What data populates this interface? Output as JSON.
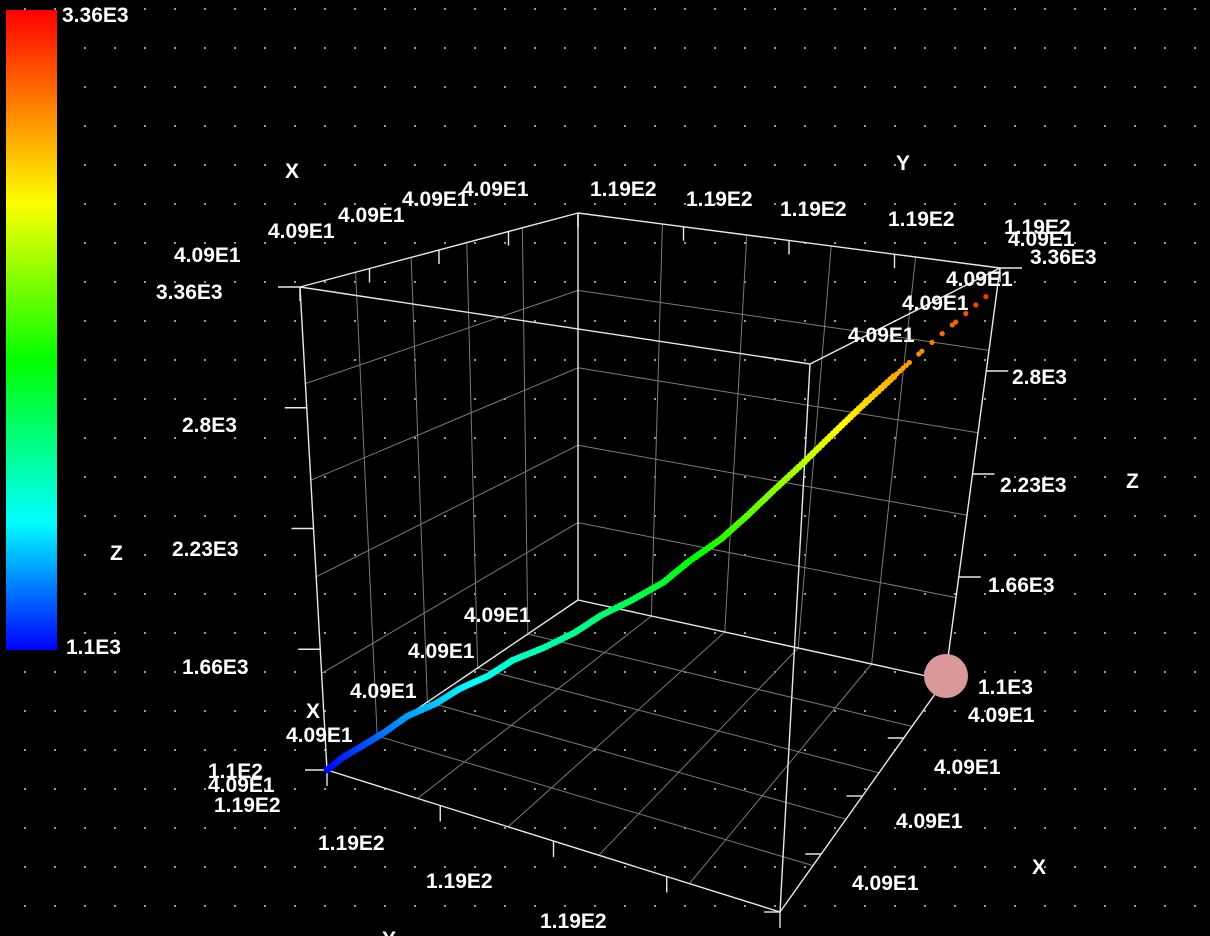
{
  "chart_data": {
    "type": "scatter",
    "title": "",
    "colormap": {
      "min_label": "1.1E3",
      "max_label": "3.36E3",
      "axis_name": "Z",
      "colors": [
        "#0000ff",
        "#00ffff",
        "#00ff00",
        "#ffff00",
        "#ff8000",
        "#ff0000"
      ]
    },
    "axes": {
      "x": {
        "name": "X",
        "range": [
          40.9,
          119
        ],
        "tick_labels": [
          "4.09E1",
          "4.09E1",
          "4.09E1",
          "4.09E1",
          "4.09E1"
        ],
        "front_tick_labels": [
          "1.19E2",
          "1.19E2",
          "1.19E2",
          "1.19E2"
        ]
      },
      "y": {
        "name": "Y",
        "range": [
          40.9,
          119
        ],
        "tick_labels": [
          "1.19E2",
          "1.19E2",
          "1.19E2",
          "1.19E2"
        ],
        "front_tick_labels": [
          "4.09E1",
          "4.09E1",
          "4.09E1",
          "4.09E1"
        ]
      },
      "z": {
        "name": "Z",
        "range": [
          1100,
          3360
        ],
        "tick_labels": [
          "1.1E3",
          "1.66E3",
          "2.23E3",
          "2.8E3",
          "3.36E3"
        ]
      }
    },
    "grid": true,
    "corner_labels": {
      "left_bottom": [
        "1.1E2",
        "4.09E1",
        "1.19E2"
      ],
      "right_top": [
        "1.19E2",
        "4.09E1",
        "3.36E3"
      ],
      "inner_edge": [
        "4.09E1",
        "4.09E1",
        "4.09E1",
        "4.09E1"
      ],
      "back_edge": [
        "4.09E1",
        "4.09E1"
      ]
    },
    "series": [
      {
        "x": [
          119,
          117,
          114,
          111,
          108,
          104,
          101,
          97,
          94,
          90,
          86,
          83,
          79,
          75,
          72,
          68,
          65,
          62,
          59,
          56,
          53,
          50,
          47,
          44,
          41
        ],
        "y": [
          40.9,
          42,
          43.5,
          45,
          47,
          49,
          51,
          53,
          55.5,
          58,
          61,
          64,
          67,
          70,
          73,
          76,
          79,
          82,
          86,
          90,
          94,
          99,
          104,
          110,
          116
        ],
        "z": [
          1100,
          1160,
          1230,
          1300,
          1380,
          1450,
          1520,
          1590,
          1660,
          1720,
          1790,
          1860,
          1930,
          2010,
          2100,
          2200,
          2300,
          2410,
          2520,
          2640,
          2760,
          2880,
          3000,
          3120,
          3240
        ],
        "color_by": "z"
      }
    ],
    "highlight_point": {
      "x": 40.9,
      "y": 40.9,
      "z": 1100,
      "color": "#d9999a"
    }
  }
}
